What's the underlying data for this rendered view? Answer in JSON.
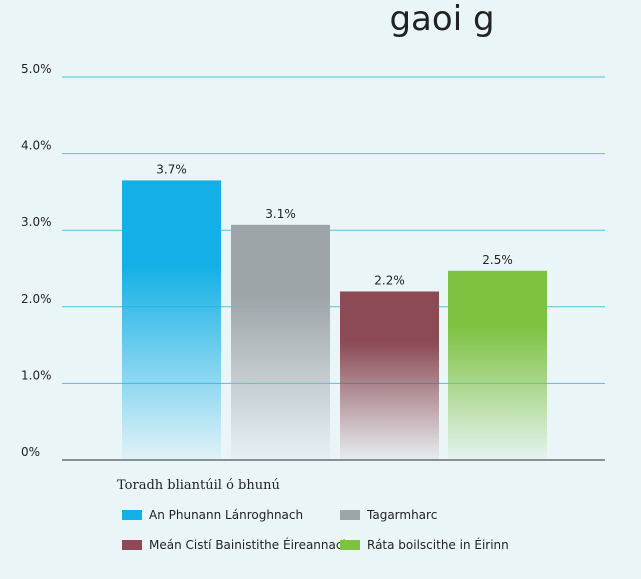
{
  "chart_data": {
    "type": "bar",
    "title_fragment": "gaoi                 g",
    "xlabel": "Toradh bliantúil ó bhunú",
    "ylim": [
      0,
      5
    ],
    "y_ticks": [
      {
        "value": 0,
        "label": "0%"
      },
      {
        "value": 1,
        "label": "1.0%"
      },
      {
        "value": 2,
        "label": "2.0%"
      },
      {
        "value": 3,
        "label": "3.0%"
      },
      {
        "value": 4,
        "label": "4.0%"
      },
      {
        "value": 5,
        "label": "5.0%"
      }
    ],
    "grid": true,
    "legend_position": "bottom",
    "series": [
      {
        "name": "An Phunann Lánroghnach",
        "value": 3.65,
        "label": "3.7%",
        "color": "#12b0e6"
      },
      {
        "name": "Tagarmharc",
        "value": 3.07,
        "label": "3.1%",
        "color": "#9ea5a8"
      },
      {
        "name": "Meán Cistí Bainistithe Éireannacha",
        "value": 2.2,
        "label": "2.2%",
        "color": "#8c4a55"
      },
      {
        "name": "Ráta boilscithe in Éirinn",
        "value": 2.47,
        "label": "2.5%",
        "color": "#7ec242"
      }
    ],
    "gridline_color": "#4fc3d9",
    "axis_color": "#555555"
  }
}
